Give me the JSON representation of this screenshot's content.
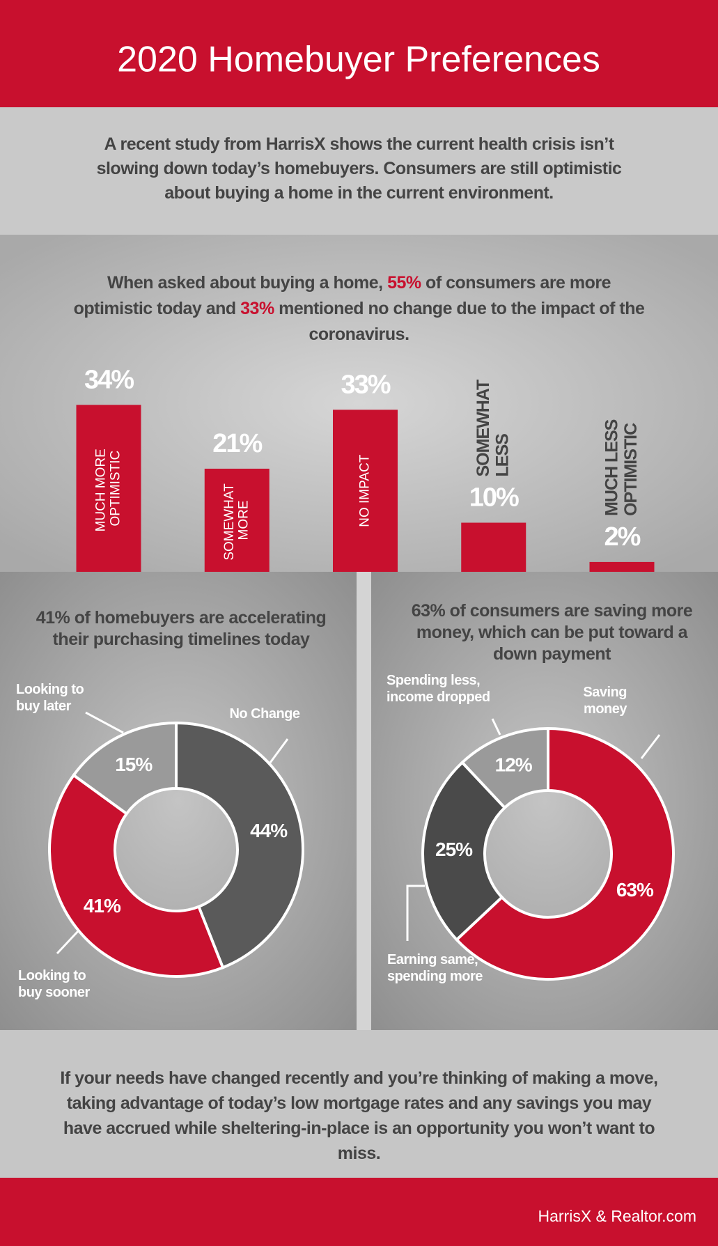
{
  "header": {
    "title": "2020 Homebuyer Preferences"
  },
  "intro": "A recent study from HarrisX shows the current health crisis isn’t slowing down today’s homebuyers. Consumers are still optimistic about buying a home in the current environment.",
  "chart_data": [
    {
      "type": "bar",
      "title_segments": [
        "When asked about buying a home, ",
        "55%",
        " of consumers are more optimistic today and ",
        "33%",
        " mentioned no change due to the impact of the coronavirus."
      ],
      "highlight_color": "#c8102e",
      "categories": [
        "MUCH MORE OPTIMISTIC",
        "SOMEWHAT MORE",
        "NO IMPACT",
        "SOMEWHAT LESS",
        "MUCH LESS OPTIMISTIC"
      ],
      "values": [
        34,
        21,
        33,
        10,
        2
      ],
      "value_labels": [
        "34%",
        "21%",
        "33%",
        "10%",
        "2%"
      ],
      "color": "#c8102e"
    },
    {
      "type": "donut",
      "title": "41% of homebuyers are accelerating their purchasing timelines today",
      "categories": [
        "No Change",
        "Looking to buy sooner",
        "Looking to buy later"
      ],
      "values": [
        44,
        41,
        15
      ],
      "value_labels": [
        "44%",
        "41%",
        "15%"
      ],
      "colors": [
        "#5a5a5a",
        "#c8102e",
        "#9a9a9a"
      ]
    },
    {
      "type": "donut",
      "title": "63% of consumers are saving more money, which can be put toward a down payment",
      "categories": [
        "Saving money",
        "Earning same, spending more",
        "Spending less, income dropped"
      ],
      "values": [
        63,
        25,
        12
      ],
      "value_labels": [
        "63%",
        "25%",
        "12%"
      ],
      "colors": [
        "#c8102e",
        "#4a4a4a",
        "#9a9a9a"
      ]
    }
  ],
  "closing": "If your needs have changed recently and you’re thinking of making a move, taking advantage of today’s low mortgage rates and any savings you may have accrued while sheltering-in-place is an opportunity you won’t want to miss.",
  "footer": {
    "source": "HarrisX & Realtor.com"
  }
}
